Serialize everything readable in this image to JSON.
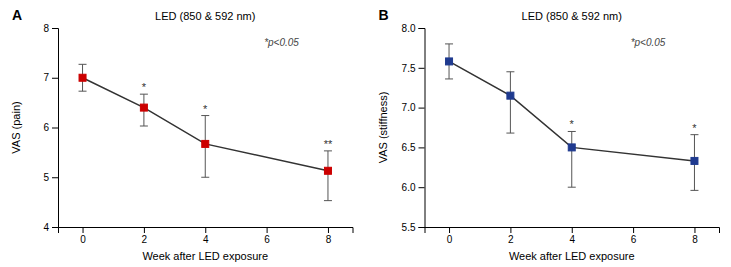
{
  "chart_data": [
    {
      "type": "line",
      "title": "LED (850 & 592 nm)",
      "panel_label": "A",
      "note": "*p<0.05",
      "x_label": "Week after LED exposure",
      "y_label": "VAS (pain)",
      "x": [
        0,
        2,
        4,
        8
      ],
      "values": [
        7.0,
        6.4,
        5.67,
        5.13
      ],
      "yerr_upper": [
        0.27,
        0.27,
        0.57,
        0.4
      ],
      "yerr_lower": [
        0.27,
        0.37,
        0.67,
        0.6
      ],
      "value_annotations": [
        null,
        "*",
        "*",
        "**"
      ],
      "color": "#cc0000",
      "marker": "square",
      "xlim": [
        -0.8,
        8.8
      ],
      "xticks": [
        0,
        2,
        4,
        6,
        8
      ],
      "ylim": [
        4,
        8
      ],
      "yticks": [
        4,
        5,
        6,
        7,
        8
      ]
    },
    {
      "type": "line",
      "title": "LED (850 & 592 nm)",
      "panel_label": "B",
      "note": "*p<0.05",
      "x_label": "Week after LED exposure",
      "y_label": "VAS (stiffness)",
      "x": [
        0,
        2,
        4,
        8
      ],
      "values": [
        7.58,
        7.15,
        6.5,
        6.33
      ],
      "yerr_upper": [
        0.22,
        0.3,
        0.2,
        0.33
      ],
      "yerr_lower": [
        0.22,
        0.47,
        0.5,
        0.37
      ],
      "value_annotations": [
        null,
        null,
        "*",
        "*"
      ],
      "color": "#1f3a8f",
      "marker": "square",
      "xlim": [
        -0.8,
        8.8
      ],
      "xticks": [
        0,
        2,
        4,
        6,
        8
      ],
      "ylim": [
        5.5,
        8.0
      ],
      "yticks": [
        5.5,
        {
          "value": 6.0,
          "label": "6.0"
        },
        6.5,
        {
          "value": 7.0,
          "label": "7.0"
        },
        7.5,
        {
          "value": 8.0,
          "label": "8.0"
        }
      ]
    }
  ]
}
